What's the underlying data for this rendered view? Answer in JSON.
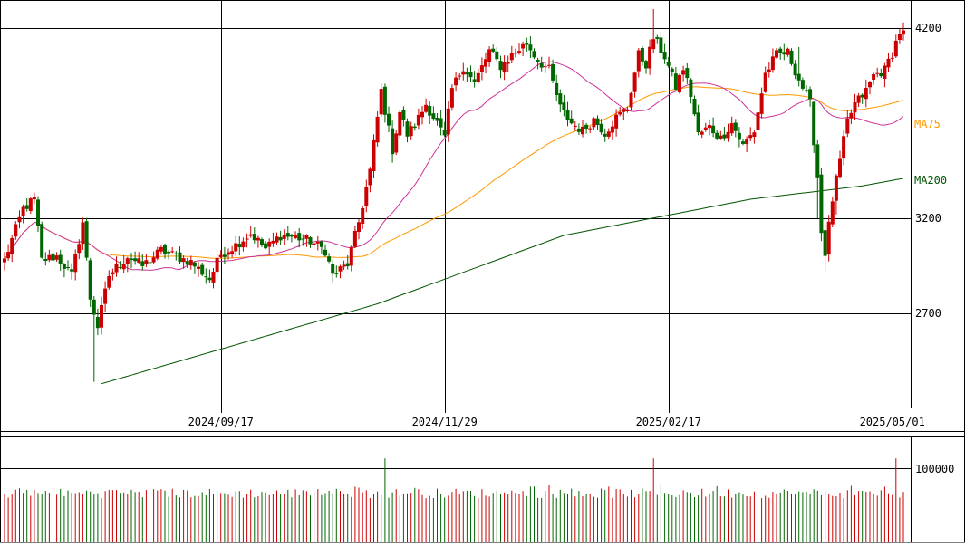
{
  "chart_data": [
    {
      "type": "candlestick",
      "title": "",
      "xlabel": "",
      "ylabel": "",
      "ylim": [
        2300,
        4300
      ],
      "ticks": [
        2700,
        3200,
        4200
      ],
      "tick_labels": [
        "2700",
        "3200",
        "4200"
      ],
      "x_labels": [
        {
          "i": 58,
          "text": "2024/09/17"
        },
        {
          "i": 118,
          "text": "2024/11/29"
        },
        {
          "i": 178,
          "text": "2025/02/17"
        },
        {
          "i": 238,
          "text": "2025/05/01"
        }
      ],
      "series_labels": [
        "MA200"
      ],
      "overlapping_label": "MA75",
      "colors": {
        "up": "#cc0000",
        "down": "#006600",
        "ma_short": "#cc3399",
        "ma_mid": "#ff9900",
        "ma_long": "#005500"
      },
      "anchors": [
        {
          "i": 0,
          "c": 2980
        },
        {
          "i": 5,
          "c": 3250
        },
        {
          "i": 8,
          "c": 3300
        },
        {
          "i": 10,
          "c": 2980
        },
        {
          "i": 14,
          "c": 3000
        },
        {
          "i": 18,
          "c": 2900
        },
        {
          "i": 21,
          "c": 3180
        },
        {
          "i": 23,
          "c": 2780
        },
        {
          "i": 25,
          "c": 2630
        },
        {
          "i": 28,
          "c": 2900
        },
        {
          "i": 33,
          "c": 3000
        },
        {
          "i": 37,
          "c": 2950
        },
        {
          "i": 42,
          "c": 3030
        },
        {
          "i": 46,
          "c": 3000
        },
        {
          "i": 50,
          "c": 2970
        },
        {
          "i": 55,
          "c": 2880
        },
        {
          "i": 58,
          "c": 3010
        },
        {
          "i": 62,
          "c": 3060
        },
        {
          "i": 66,
          "c": 3120
        },
        {
          "i": 70,
          "c": 3040
        },
        {
          "i": 74,
          "c": 3110
        },
        {
          "i": 78,
          "c": 3100
        },
        {
          "i": 82,
          "c": 3080
        },
        {
          "i": 86,
          "c": 3030
        },
        {
          "i": 88,
          "c": 2900
        },
        {
          "i": 92,
          "c": 2960
        },
        {
          "i": 95,
          "c": 3180
        },
        {
          "i": 98,
          "c": 3450
        },
        {
          "i": 101,
          "c": 3870
        },
        {
          "i": 104,
          "c": 3560
        },
        {
          "i": 106,
          "c": 3760
        },
        {
          "i": 108,
          "c": 3640
        },
        {
          "i": 110,
          "c": 3690
        },
        {
          "i": 113,
          "c": 3800
        },
        {
          "i": 116,
          "c": 3700
        },
        {
          "i": 118,
          "c": 3620
        },
        {
          "i": 120,
          "c": 3880
        },
        {
          "i": 123,
          "c": 4000
        },
        {
          "i": 126,
          "c": 3910
        },
        {
          "i": 130,
          "c": 4080
        },
        {
          "i": 133,
          "c": 4000
        },
        {
          "i": 136,
          "c": 4060
        },
        {
          "i": 140,
          "c": 4120
        },
        {
          "i": 143,
          "c": 4030
        },
        {
          "i": 146,
          "c": 3980
        },
        {
          "i": 149,
          "c": 3780
        },
        {
          "i": 152,
          "c": 3700
        },
        {
          "i": 155,
          "c": 3660
        },
        {
          "i": 158,
          "c": 3720
        },
        {
          "i": 161,
          "c": 3650
        },
        {
          "i": 164,
          "c": 3730
        },
        {
          "i": 167,
          "c": 3780
        },
        {
          "i": 170,
          "c": 4060
        },
        {
          "i": 172,
          "c": 4010
        },
        {
          "i": 174,
          "c": 4150
        },
        {
          "i": 177,
          "c": 4050
        },
        {
          "i": 180,
          "c": 3890
        },
        {
          "i": 182,
          "c": 3990
        },
        {
          "i": 184,
          "c": 3850
        },
        {
          "i": 186,
          "c": 3640
        },
        {
          "i": 189,
          "c": 3680
        },
        {
          "i": 192,
          "c": 3620
        },
        {
          "i": 195,
          "c": 3700
        },
        {
          "i": 198,
          "c": 3580
        },
        {
          "i": 201,
          "c": 3660
        },
        {
          "i": 204,
          "c": 3960
        },
        {
          "i": 207,
          "c": 4060
        },
        {
          "i": 210,
          "c": 4070
        },
        {
          "i": 213,
          "c": 3930
        },
        {
          "i": 216,
          "c": 3800
        },
        {
          "i": 218,
          "c": 3420
        },
        {
          "i": 219,
          "c": 3130
        },
        {
          "i": 220,
          "c": 3020
        },
        {
          "i": 222,
          "c": 3300
        },
        {
          "i": 224,
          "c": 3500
        },
        {
          "i": 226,
          "c": 3710
        },
        {
          "i": 228,
          "c": 3800
        },
        {
          "i": 231,
          "c": 3870
        },
        {
          "i": 233,
          "c": 3950
        },
        {
          "i": 236,
          "c": 3980
        },
        {
          "i": 238,
          "c": 4070
        },
        {
          "i": 240,
          "c": 4180
        },
        {
          "i": 241,
          "c": 4170
        }
      ],
      "ma_long_pts": [
        {
          "i": 26,
          "v": 2330
        },
        {
          "i": 100,
          "v": 2750
        },
        {
          "i": 150,
          "v": 3110
        },
        {
          "i": 200,
          "v": 3300
        },
        {
          "i": 230,
          "v": 3370
        },
        {
          "i": 241,
          "v": 3410
        }
      ]
    },
    {
      "type": "bar",
      "title": "",
      "ylim": [
        0,
        130000
      ],
      "ticks": [
        100000
      ],
      "tick_labels": [
        "100000"
      ],
      "spikes": [
        {
          "i": 102,
          "v": 130000
        },
        {
          "i": 174,
          "v": 130000
        },
        {
          "i": 239,
          "v": 130000
        }
      ],
      "colors": {
        "up": "#cc0000",
        "down": "#006600"
      }
    }
  ]
}
